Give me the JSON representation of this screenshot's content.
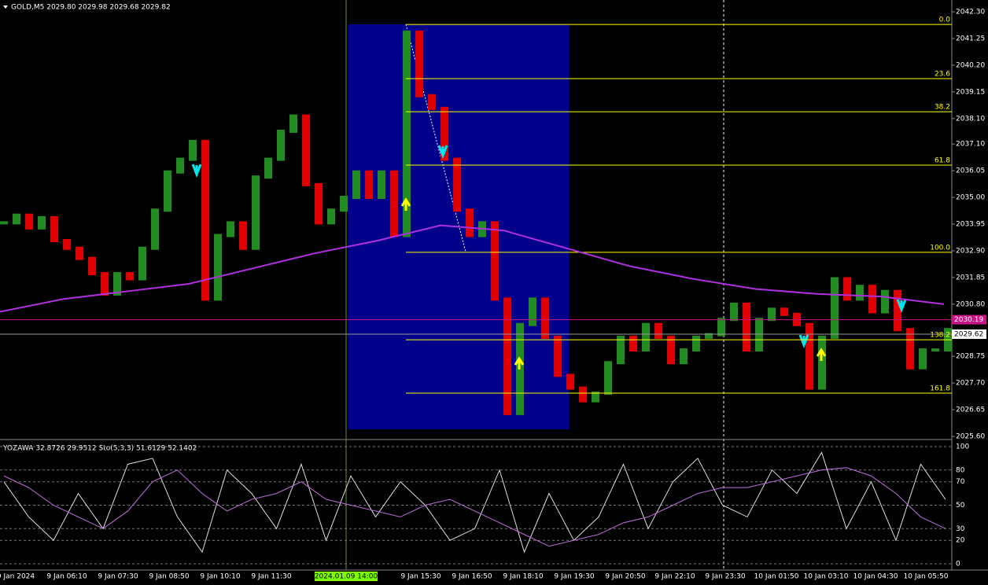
{
  "header": "GOLD,M5  2029.80 2029.98 2029.68 2029.82",
  "oscillator_header": "YOZAWA 32.8726 29.9512  Sto(5,3,3) 51.6129 52.1402",
  "price_axis": {
    "ylim": [
      2025.6,
      2042.3
    ],
    "ticks": [
      {
        "value": 2042.3,
        "label": "2042.30"
      },
      {
        "value": 2041.25,
        "label": "2041.25"
      },
      {
        "value": 2040.2,
        "label": "2040.20"
      },
      {
        "value": 2039.15,
        "label": "2039.15"
      },
      {
        "value": 2038.1,
        "label": "2038.10"
      },
      {
        "value": 2037.1,
        "label": "2037.10"
      },
      {
        "value": 2036.05,
        "label": "2036.05"
      },
      {
        "value": 2035,
        "label": "2035.00"
      },
      {
        "value": 2033.95,
        "label": "2033.95"
      },
      {
        "value": 2032.9,
        "label": "2032.90"
      },
      {
        "value": 2031.85,
        "label": "2031.85"
      },
      {
        "value": 2030.8,
        "label": "2030.80"
      },
      {
        "value": 2028.75,
        "label": "2028.75"
      },
      {
        "value": 2027.7,
        "label": "2027.70"
      },
      {
        "value": 2026.65,
        "label": "2026.65"
      },
      {
        "value": 2025.6,
        "label": "2025.60"
      }
    ],
    "level_price": {
      "value": 2030.19,
      "label": "2030.19"
    },
    "bid_price": {
      "value": 2029.62,
      "label": "2029.62"
    }
  },
  "closes": [
    2034.0,
    2034.3,
    2033.8,
    2034.2,
    2033.3,
    2033.0,
    2032.6,
    2032.0,
    2031.2,
    2032.0,
    2031.8,
    2033.0,
    2034.5,
    2036.0,
    2036.5,
    2037.2,
    2031.0,
    2033.5,
    2034.0,
    2033.0,
    2035.8,
    2036.5,
    2037.6,
    2038.2,
    2035.5,
    2034.0,
    2034.5,
    2035.0,
    2036.0,
    2035.0,
    2036.0,
    2033.5,
    2041.5,
    2039.0,
    2038.5,
    2036.5,
    2034.5,
    2033.5,
    2034.0,
    2031.0,
    2026.5,
    2030.0,
    2031.0,
    2029.5,
    2028.0,
    2027.5,
    2027.0,
    2027.3,
    2028.5,
    2029.5,
    2029.0,
    2030.0,
    2029.5,
    2028.5,
    2029.0,
    2029.5,
    2029.6,
    2030.2,
    2030.8,
    2029.0,
    2030.2,
    2030.6,
    2030.4,
    2030.0,
    2027.5,
    2029.5,
    2031.8,
    2031.0,
    2031.5,
    2030.5,
    2031.3,
    2029.8,
    2028.3,
    2029.0,
    2029.0,
    2029.8
  ],
  "moving_average": [
    2030.5,
    2031.0,
    2031.3,
    2031.6,
    2032.2,
    2032.8,
    2033.3,
    2033.9,
    2033.7,
    2033.0,
    2032.3,
    2031.8,
    2031.4,
    2031.2,
    2031.1,
    2030.8
  ],
  "fibonacci": [
    {
      "label": "0.0",
      "price": 2041.8
    },
    {
      "label": "23.6",
      "price": 2039.67
    },
    {
      "label": "38.2",
      "price": 2038.37
    },
    {
      "label": "61.8",
      "price": 2036.27
    },
    {
      "label": "100.0",
      "price": 2032.84
    },
    {
      "label": "138.2",
      "price": 2029.4
    },
    {
      "label": "161.8",
      "price": 2027.3
    }
  ],
  "oscillator": {
    "ylim": [
      0,
      100
    ],
    "ticks": [
      100,
      80,
      70,
      50,
      30,
      20,
      0
    ],
    "main": [
      70,
      40,
      20,
      60,
      30,
      85,
      90,
      40,
      10,
      80,
      60,
      30,
      85,
      20,
      75,
      40,
      70,
      50,
      20,
      30,
      80,
      10,
      60,
      20,
      40,
      85,
      30,
      70,
      90,
      50,
      40,
      80,
      60,
      95,
      30,
      70,
      20,
      85,
      55
    ],
    "signal": [
      75,
      65,
      50,
      40,
      30,
      45,
      70,
      80,
      60,
      45,
      55,
      60,
      70,
      55,
      50,
      45,
      40,
      50,
      55,
      45,
      35,
      25,
      15,
      20,
      25,
      35,
      40,
      50,
      60,
      65,
      65,
      70,
      75,
      80,
      82,
      75,
      60,
      40,
      30
    ]
  },
  "time_axis": [
    "9 Jan 2024",
    "9 Jan 06:10",
    "9 Jan 07:30",
    "9 Jan 08:50",
    "9 Jan 10:10",
    "9 Jan 11:30",
    "9 Jan 15:30",
    "9 Jan 16:50",
    "9 Jan 18:10",
    "9 Jan 19:30",
    "9 Jan 20:50",
    "9 Jan 22:10",
    "9 Jan 23:30",
    "10 Jan 01:50",
    "10 Jan 03:10",
    "10 Jan 04:30",
    "10 Jan 05:50"
  ],
  "cursor_time": "2024.01.09 14:00"
}
